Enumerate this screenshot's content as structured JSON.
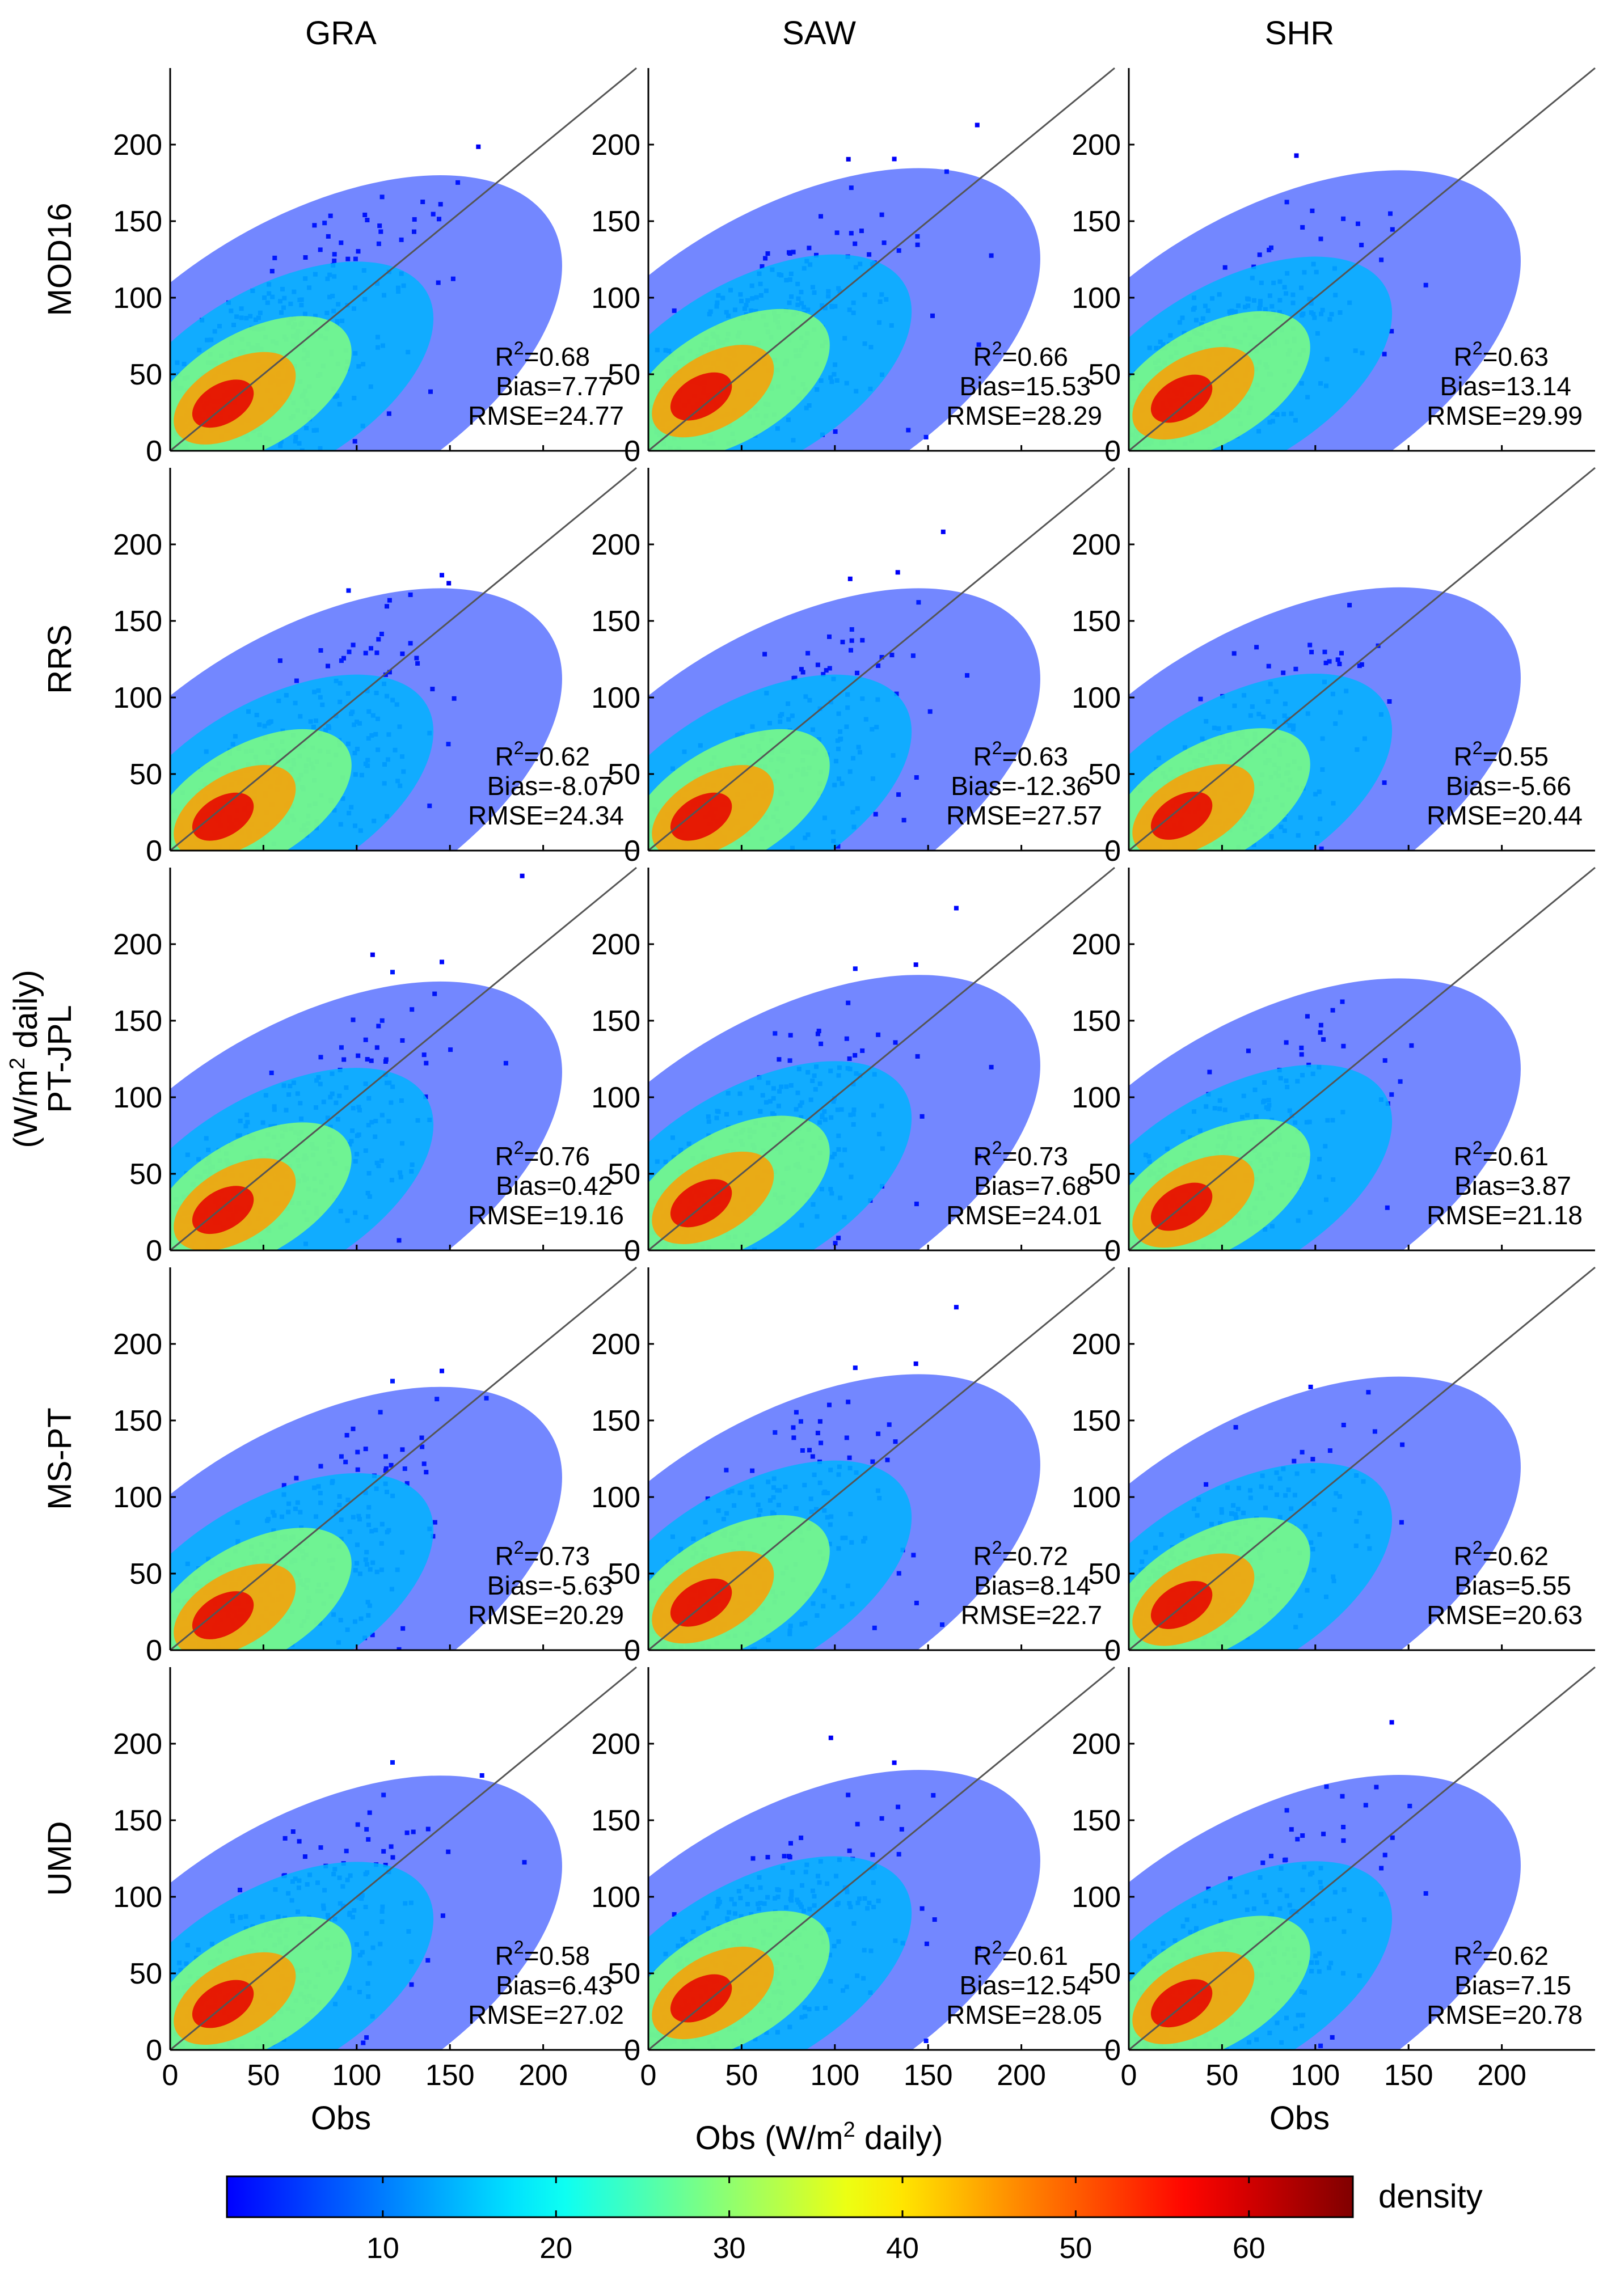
{
  "chart_data": {
    "type": "scatter",
    "subtype": "density-scatter grid (5 rows x 3 columns)",
    "columns": [
      "GRA",
      "SAW",
      "SHR"
    ],
    "rows": [
      "MOD16",
      "RRS",
      "PT-JPL",
      "MS-PT",
      "UMD"
    ],
    "ylabel": "(W/m² daily)",
    "ylabel_parts": {
      "main": "(W/m",
      "sup": "2",
      "rest": " daily)"
    },
    "xlabels": {
      "GRA": "Obs",
      "SAW": {
        "main": "Obs (W/m",
        "sup": "2",
        "rest": " daily)"
      },
      "SHR": "Obs"
    },
    "xlim": [
      0,
      250
    ],
    "ylim": [
      0,
      250
    ],
    "xticks": [
      0,
      50,
      100,
      150,
      200
    ],
    "yticks": [
      0,
      50,
      100,
      150,
      200
    ],
    "reference_line": "1:1",
    "panels": [
      {
        "row": "MOD16",
        "col": "GRA",
        "r2": "0.68",
        "bias": "7.77",
        "rmse": "24.77"
      },
      {
        "row": "MOD16",
        "col": "SAW",
        "r2": "0.66",
        "bias": "15.53",
        "rmse": "28.29"
      },
      {
        "row": "MOD16",
        "col": "SHR",
        "r2": "0.63",
        "bias": "13.14",
        "rmse": "29.99"
      },
      {
        "row": "RRS",
        "col": "GRA",
        "r2": "0.62",
        "bias": "-8.07",
        "rmse": "24.34"
      },
      {
        "row": "RRS",
        "col": "SAW",
        "r2": "0.63",
        "bias": "-12.36",
        "rmse": "27.57"
      },
      {
        "row": "RRS",
        "col": "SHR",
        "r2": "0.55",
        "bias": "-5.66",
        "rmse": "20.44"
      },
      {
        "row": "PT-JPL",
        "col": "GRA",
        "r2": "0.76",
        "bias": "0.42",
        "rmse": "19.16"
      },
      {
        "row": "PT-JPL",
        "col": "SAW",
        "r2": "0.73",
        "bias": "7.68",
        "rmse": "24.01"
      },
      {
        "row": "PT-JPL",
        "col": "SHR",
        "r2": "0.61",
        "bias": "3.87",
        "rmse": "21.18"
      },
      {
        "row": "MS-PT",
        "col": "GRA",
        "r2": "0.73",
        "bias": "-5.63",
        "rmse": "20.29"
      },
      {
        "row": "MS-PT",
        "col": "SAW",
        "r2": "0.72",
        "bias": "8.14",
        "rmse": "22.7"
      },
      {
        "row": "MS-PT",
        "col": "SHR",
        "r2": "0.62",
        "bias": "5.55",
        "rmse": "20.63"
      },
      {
        "row": "UMD",
        "col": "GRA",
        "r2": "0.58",
        "bias": "6.43",
        "rmse": "27.02"
      },
      {
        "row": "UMD",
        "col": "SAW",
        "r2": "0.61",
        "bias": "12.54",
        "rmse": "28.05"
      },
      {
        "row": "UMD",
        "col": "SHR",
        "r2": "0.62",
        "bias": "7.15",
        "rmse": "20.78"
      }
    ],
    "stat_labels": {
      "r": "R",
      "r_sup": "2",
      "r_eq": "=",
      "bias": "Bias=",
      "rmse": "RMSE="
    },
    "colorbar": {
      "label": "density",
      "range": [
        1,
        66
      ],
      "ticks": [
        10,
        20,
        30,
        40,
        50,
        60
      ],
      "colormap": "jet"
    }
  }
}
